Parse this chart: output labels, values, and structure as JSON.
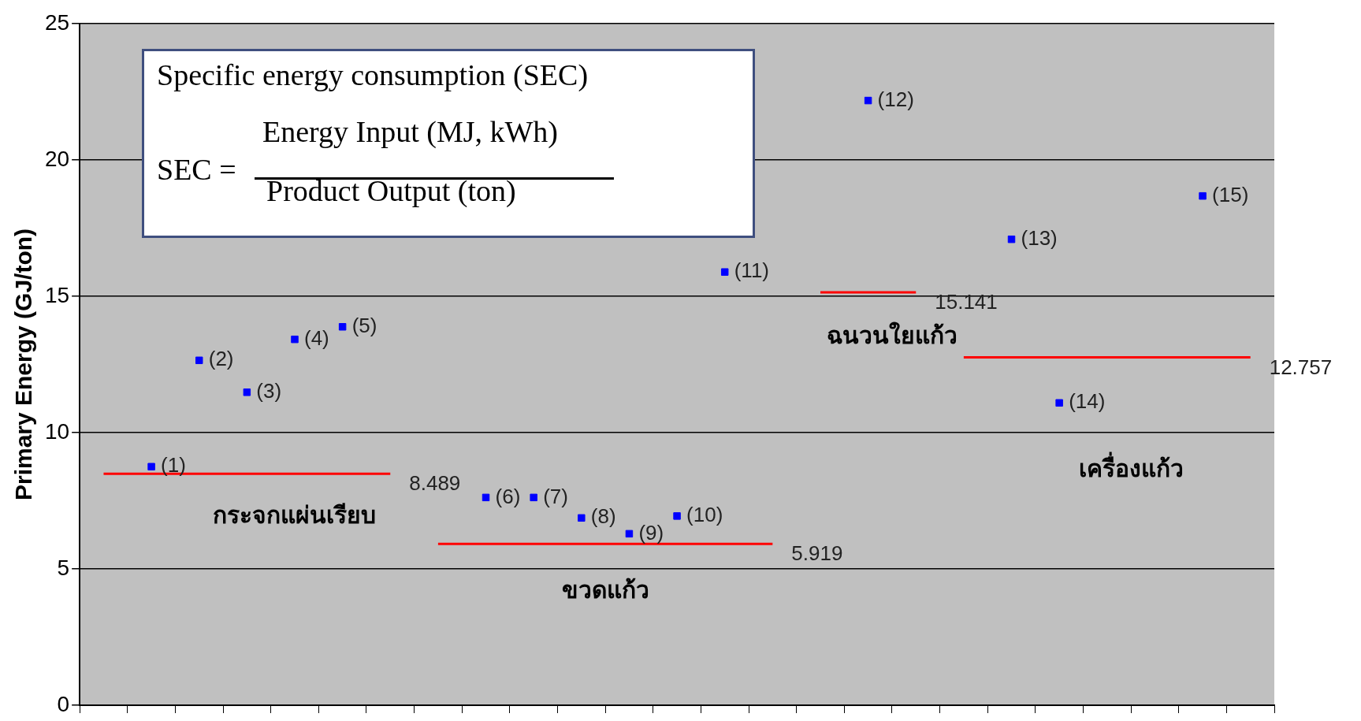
{
  "chart_data": {
    "type": "scatter",
    "ylabel": "Primary Energy (GJ/ton)",
    "categories": [
      null,
      null,
      null,
      null,
      null,
      null,
      null,
      null,
      null,
      null,
      null,
      null,
      null,
      null,
      null,
      null,
      null,
      null,
      null,
      null,
      null,
      null,
      null,
      null,
      null
    ],
    "ylim": [
      0,
      25
    ],
    "yticks": [
      0,
      5,
      10,
      15,
      20,
      25
    ],
    "grid": "y",
    "tick_labels": "y",
    "marker": "square",
    "series": [
      {
        "name": "(1)",
        "color": "#0000ff",
        "values": [
          null,
          8.75,
          null,
          null,
          null,
          null,
          null,
          null,
          null,
          null,
          null,
          null,
          null,
          null,
          null,
          null,
          null,
          null,
          null,
          null,
          null,
          null,
          null,
          null,
          null
        ]
      },
      {
        "name": "(2)",
        "color": "#0000ff",
        "values": [
          null,
          null,
          12.65,
          null,
          null,
          null,
          null,
          null,
          null,
          null,
          null,
          null,
          null,
          null,
          null,
          null,
          null,
          null,
          null,
          null,
          null,
          null,
          null,
          null,
          null
        ]
      },
      {
        "name": "(3)",
        "color": "#0000ff",
        "values": [
          null,
          null,
          null,
          11.48,
          null,
          null,
          null,
          null,
          null,
          null,
          null,
          null,
          null,
          null,
          null,
          null,
          null,
          null,
          null,
          null,
          null,
          null,
          null,
          null,
          null
        ]
      },
      {
        "name": "(4)",
        "color": "#0000ff",
        "values": [
          null,
          null,
          null,
          null,
          13.42,
          null,
          null,
          null,
          null,
          null,
          null,
          null,
          null,
          null,
          null,
          null,
          null,
          null,
          null,
          null,
          null,
          null,
          null,
          null,
          null
        ]
      },
      {
        "name": "(5)",
        "color": "#0000ff",
        "values": [
          null,
          null,
          null,
          null,
          null,
          13.88,
          null,
          null,
          null,
          null,
          null,
          null,
          null,
          null,
          null,
          null,
          null,
          null,
          null,
          null,
          null,
          null,
          null,
          null,
          null
        ]
      },
      {
        "name": "(6)",
        "color": "#0000ff",
        "values": [
          null,
          null,
          null,
          null,
          null,
          null,
          null,
          null,
          7.62,
          null,
          null,
          null,
          null,
          null,
          null,
          null,
          null,
          null,
          null,
          null,
          null,
          null,
          null,
          null,
          null
        ]
      },
      {
        "name": "(7)",
        "color": "#0000ff",
        "values": [
          null,
          null,
          null,
          null,
          null,
          null,
          null,
          null,
          null,
          7.62,
          null,
          null,
          null,
          null,
          null,
          null,
          null,
          null,
          null,
          null,
          null,
          null,
          null,
          null,
          null
        ]
      },
      {
        "name": "(8)",
        "color": "#0000ff",
        "values": [
          null,
          null,
          null,
          null,
          null,
          null,
          null,
          null,
          null,
          null,
          6.87,
          null,
          null,
          null,
          null,
          null,
          null,
          null,
          null,
          null,
          null,
          null,
          null,
          null,
          null
        ]
      },
      {
        "name": "(9)",
        "color": "#0000ff",
        "values": [
          null,
          null,
          null,
          null,
          null,
          null,
          null,
          null,
          null,
          null,
          null,
          6.29,
          null,
          null,
          null,
          null,
          null,
          null,
          null,
          null,
          null,
          null,
          null,
          null,
          null
        ]
      },
      {
        "name": "(10)",
        "color": "#0000ff",
        "values": [
          null,
          null,
          null,
          null,
          null,
          null,
          null,
          null,
          null,
          null,
          null,
          null,
          6.94,
          null,
          null,
          null,
          null,
          null,
          null,
          null,
          null,
          null,
          null,
          null,
          null
        ]
      },
      {
        "name": "(11)",
        "color": "#0000ff",
        "values": [
          null,
          null,
          null,
          null,
          null,
          null,
          null,
          null,
          null,
          null,
          null,
          null,
          null,
          15.89,
          null,
          null,
          null,
          null,
          null,
          null,
          null,
          null,
          null,
          null,
          null
        ]
      },
      {
        "name": "(12)",
        "color": "#0000ff",
        "values": [
          null,
          null,
          null,
          null,
          null,
          null,
          null,
          null,
          null,
          null,
          null,
          null,
          null,
          null,
          null,
          null,
          22.18,
          null,
          null,
          null,
          null,
          null,
          null,
          null,
          null
        ]
      },
      {
        "name": "(13)",
        "color": "#0000ff",
        "values": [
          null,
          null,
          null,
          null,
          null,
          null,
          null,
          null,
          null,
          null,
          null,
          null,
          null,
          null,
          null,
          null,
          null,
          null,
          null,
          17.09,
          null,
          null,
          null,
          null,
          null
        ]
      },
      {
        "name": "(14)",
        "color": "#0000ff",
        "values": [
          null,
          null,
          null,
          null,
          null,
          null,
          null,
          null,
          null,
          null,
          null,
          null,
          null,
          null,
          null,
          null,
          null,
          null,
          null,
          null,
          11.09,
          null,
          null,
          null,
          null
        ]
      },
      {
        "name": "(15)",
        "color": "#0000ff",
        "values": [
          null,
          null,
          null,
          null,
          null,
          null,
          null,
          null,
          null,
          null,
          null,
          null,
          null,
          null,
          null,
          null,
          null,
          null,
          null,
          null,
          null,
          null,
          null,
          18.68,
          null
        ]
      },
      {
        "type": "line",
        "color": "#ff0000",
        "marker": "none",
        "values": [
          8.489,
          8.489,
          8.489,
          8.489,
          8.489,
          8.489,
          8.489,
          null,
          null,
          null,
          null,
          null,
          null,
          null,
          null,
          null,
          null,
          null,
          null,
          null,
          null,
          null,
          null,
          null,
          null
        ],
        "value_labels": [
          null,
          null,
          null,
          null,
          null,
          null,
          "8.489",
          null,
          null,
          null,
          null,
          null,
          null,
          null,
          null,
          null,
          null,
          null,
          null,
          null,
          null,
          null,
          null,
          null,
          null
        ]
      },
      {
        "type": "line",
        "color": "#ff0000",
        "marker": "none",
        "values": [
          null,
          null,
          null,
          null,
          null,
          null,
          null,
          5.919,
          5.919,
          5.919,
          5.919,
          5.919,
          5.919,
          5.919,
          5.919,
          null,
          null,
          null,
          null,
          null,
          null,
          null,
          null,
          null,
          null
        ],
        "value_labels": [
          null,
          null,
          null,
          null,
          null,
          null,
          null,
          null,
          null,
          null,
          null,
          null,
          null,
          null,
          "5.919",
          null,
          null,
          null,
          null,
          null,
          null,
          null,
          null,
          null,
          null
        ]
      },
      {
        "type": "line",
        "color": "#ff0000",
        "marker": "none",
        "values": [
          null,
          null,
          null,
          null,
          null,
          null,
          null,
          null,
          null,
          null,
          null,
          null,
          null,
          null,
          null,
          15.141,
          15.141,
          15.141,
          null,
          null,
          null,
          null,
          null,
          null,
          null
        ],
        "value_labels": [
          null,
          null,
          null,
          null,
          null,
          null,
          null,
          null,
          null,
          null,
          null,
          null,
          null,
          null,
          null,
          null,
          null,
          "15.141",
          null,
          null,
          null,
          null,
          null,
          null,
          null
        ]
      },
      {
        "type": "line",
        "color": "#ff0000",
        "marker": "none",
        "values": [
          null,
          null,
          null,
          null,
          null,
          null,
          null,
          null,
          null,
          null,
          null,
          null,
          null,
          null,
          null,
          null,
          null,
          null,
          12.757,
          12.757,
          12.757,
          12.757,
          12.757,
          12.757,
          12.757
        ],
        "value_labels": [
          null,
          null,
          null,
          null,
          null,
          null,
          null,
          null,
          null,
          null,
          null,
          null,
          null,
          null,
          null,
          null,
          null,
          null,
          null,
          null,
          null,
          null,
          null,
          null,
          "12.757"
        ]
      }
    ],
    "annotations": [
      "กระจกแผ่นเรียบ",
      "ขวดแก้ว",
      "ฉนวนใยแก้ว",
      "เครื่องแก้ว",
      "Specific energy consumption (SEC)",
      "SEC =",
      "Energy Input (MJ, kWh)",
      "Product Output (ton)"
    ]
  }
}
